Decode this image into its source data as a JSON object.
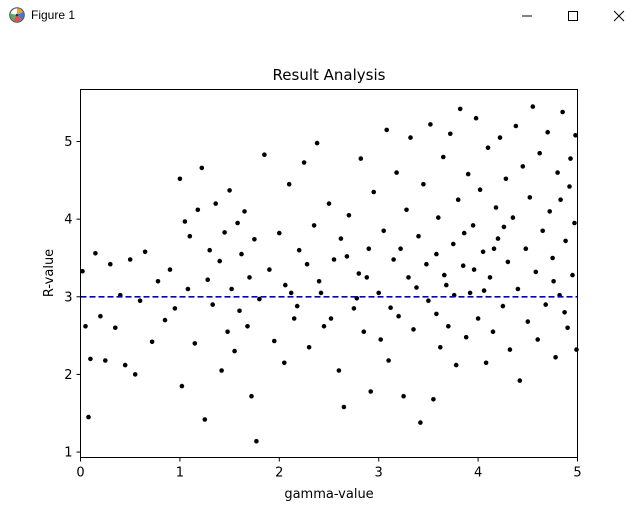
{
  "window": {
    "title": "Figure 1",
    "icon": "matplotlib-logo-icon",
    "buttons": [
      "minimize-icon",
      "maximize-icon",
      "close-icon"
    ]
  },
  "chart_data": {
    "type": "scatter",
    "title": "Result Analysis",
    "xlabel": "gamma-value",
    "ylabel": "R-value",
    "xlim": [
      0,
      5
    ],
    "ylim": [
      0.93,
      5.67
    ],
    "xticks": [
      "0",
      "1",
      "2",
      "3",
      "4",
      "5"
    ],
    "yticks": [
      "1",
      "2",
      "3",
      "4",
      "5"
    ],
    "grid": false,
    "legend": "none",
    "reference_line": {
      "y": 3.0,
      "style": "dashed",
      "color": "#0000cc"
    },
    "marker_color": "#000000",
    "series": [
      {
        "points": [
          [
            0.02,
            3.33
          ],
          [
            0.05,
            2.62
          ],
          [
            0.08,
            1.45
          ],
          [
            0.1,
            2.2
          ],
          [
            0.15,
            3.56
          ],
          [
            0.2,
            2.75
          ],
          [
            0.25,
            2.18
          ],
          [
            0.3,
            3.42
          ],
          [
            0.35,
            2.6
          ],
          [
            0.4,
            3.02
          ],
          [
            0.45,
            2.12
          ],
          [
            0.5,
            3.48
          ],
          [
            0.55,
            2.0
          ],
          [
            0.6,
            2.95
          ],
          [
            0.65,
            3.58
          ],
          [
            0.72,
            2.42
          ],
          [
            0.78,
            3.2
          ],
          [
            0.85,
            2.7
          ],
          [
            0.9,
            3.35
          ],
          [
            0.95,
            2.85
          ],
          [
            1.0,
            4.52
          ],
          [
            1.02,
            1.85
          ],
          [
            1.05,
            3.97
          ],
          [
            1.08,
            3.1
          ],
          [
            1.1,
            3.78
          ],
          [
            1.15,
            2.4
          ],
          [
            1.18,
            4.12
          ],
          [
            1.22,
            4.66
          ],
          [
            1.25,
            1.42
          ],
          [
            1.28,
            3.22
          ],
          [
            1.3,
            3.6
          ],
          [
            1.33,
            2.9
          ],
          [
            1.36,
            4.2
          ],
          [
            1.4,
            3.46
          ],
          [
            1.42,
            2.05
          ],
          [
            1.45,
            3.83
          ],
          [
            1.48,
            2.55
          ],
          [
            1.5,
            4.37
          ],
          [
            1.52,
            3.1
          ],
          [
            1.55,
            2.3
          ],
          [
            1.58,
            3.95
          ],
          [
            1.6,
            2.82
          ],
          [
            1.62,
            3.55
          ],
          [
            1.65,
            4.1
          ],
          [
            1.68,
            2.62
          ],
          [
            1.7,
            3.25
          ],
          [
            1.72,
            1.72
          ],
          [
            1.75,
            3.74
          ],
          [
            1.77,
            1.14
          ],
          [
            1.8,
            2.97
          ],
          [
            1.85,
            4.83
          ],
          [
            1.9,
            3.35
          ],
          [
            1.95,
            2.43
          ],
          [
            2.0,
            3.82
          ],
          [
            2.05,
            2.15
          ],
          [
            2.1,
            4.45
          ],
          [
            2.12,
            3.05
          ],
          [
            2.15,
            2.72
          ],
          [
            2.2,
            3.6
          ],
          [
            2.25,
            4.73
          ],
          [
            2.3,
            2.35
          ],
          [
            2.35,
            3.92
          ],
          [
            2.38,
            4.98
          ],
          [
            2.4,
            3.2
          ],
          [
            2.45,
            2.62
          ],
          [
            2.5,
            4.2
          ],
          [
            2.55,
            3.48
          ],
          [
            2.6,
            2.05
          ],
          [
            2.62,
            3.75
          ],
          [
            2.65,
            1.58
          ],
          [
            2.7,
            4.05
          ],
          [
            2.75,
            2.85
          ],
          [
            2.8,
            3.3
          ],
          [
            2.82,
            4.78
          ],
          [
            2.85,
            2.55
          ],
          [
            2.9,
            3.62
          ],
          [
            2.92,
            1.78
          ],
          [
            2.95,
            4.35
          ],
          [
            3.0,
            3.05
          ],
          [
            3.02,
            2.45
          ],
          [
            3.05,
            3.85
          ],
          [
            3.08,
            5.15
          ],
          [
            3.1,
            2.18
          ],
          [
            3.15,
            3.48
          ],
          [
            3.18,
            4.6
          ],
          [
            3.2,
            2.75
          ],
          [
            3.25,
            1.72
          ],
          [
            3.28,
            4.12
          ],
          [
            3.3,
            3.25
          ],
          [
            3.32,
            5.05
          ],
          [
            3.35,
            2.58
          ],
          [
            3.4,
            3.78
          ],
          [
            3.42,
            1.38
          ],
          [
            3.45,
            4.45
          ],
          [
            3.5,
            2.95
          ],
          [
            3.52,
            5.22
          ],
          [
            3.55,
            1.68
          ],
          [
            3.58,
            3.55
          ],
          [
            3.6,
            4.02
          ],
          [
            3.62,
            2.35
          ],
          [
            3.65,
            4.8
          ],
          [
            3.68,
            3.15
          ],
          [
            3.7,
            2.62
          ],
          [
            3.72,
            5.1
          ],
          [
            3.75,
            3.68
          ],
          [
            3.78,
            2.12
          ],
          [
            3.8,
            4.25
          ],
          [
            3.82,
            5.42
          ],
          [
            3.85,
            3.4
          ],
          [
            3.88,
            2.48
          ],
          [
            3.9,
            4.58
          ],
          [
            3.92,
            3.05
          ],
          [
            3.95,
            3.92
          ],
          [
            3.98,
            5.3
          ],
          [
            4.0,
            2.72
          ],
          [
            4.02,
            4.38
          ],
          [
            4.05,
            3.58
          ],
          [
            4.08,
            2.15
          ],
          [
            4.1,
            4.92
          ],
          [
            4.12,
            3.25
          ],
          [
            4.15,
            2.55
          ],
          [
            4.18,
            4.15
          ],
          [
            4.2,
            3.75
          ],
          [
            4.22,
            5.05
          ],
          [
            4.25,
            2.88
          ],
          [
            4.28,
            4.52
          ],
          [
            4.3,
            3.45
          ],
          [
            4.32,
            2.32
          ],
          [
            4.35,
            4.02
          ],
          [
            4.38,
            5.2
          ],
          [
            4.4,
            3.1
          ],
          [
            4.42,
            1.92
          ],
          [
            4.45,
            4.68
          ],
          [
            4.48,
            3.62
          ],
          [
            4.5,
            2.68
          ],
          [
            4.52,
            4.28
          ],
          [
            4.55,
            5.45
          ],
          [
            4.58,
            3.32
          ],
          [
            4.6,
            2.45
          ],
          [
            4.62,
            4.85
          ],
          [
            4.65,
            3.85
          ],
          [
            4.68,
            2.9
          ],
          [
            4.7,
            5.12
          ],
          [
            4.72,
            4.1
          ],
          [
            4.75,
            3.5
          ],
          [
            4.78,
            2.22
          ],
          [
            4.8,
            4.6
          ],
          [
            4.82,
            3.02
          ],
          [
            4.85,
            5.38
          ],
          [
            4.88,
            3.72
          ],
          [
            4.9,
            2.6
          ],
          [
            4.92,
            4.42
          ],
          [
            4.95,
            3.28
          ],
          [
            4.98,
            5.08
          ],
          [
            4.99,
            2.32
          ],
          [
            4.97,
            3.95
          ],
          [
            4.93,
            4.78
          ],
          [
            4.87,
            2.8
          ],
          [
            4.83,
            4.25
          ],
          [
            4.76,
            3.2
          ],
          [
            2.06,
            3.15
          ],
          [
            2.18,
            2.88
          ],
          [
            2.28,
            3.42
          ],
          [
            2.42,
            3.05
          ],
          [
            2.52,
            2.72
          ],
          [
            2.68,
            3.52
          ],
          [
            2.78,
            2.98
          ],
          [
            2.88,
            3.25
          ],
          [
            3.12,
            2.86
          ],
          [
            3.22,
            3.62
          ],
          [
            3.38,
            3.12
          ],
          [
            3.48,
            3.42
          ],
          [
            3.58,
            2.78
          ],
          [
            3.66,
            3.28
          ],
          [
            3.76,
            3.02
          ],
          [
            3.86,
            3.82
          ],
          [
            3.96,
            3.35
          ],
          [
            4.06,
            3.08
          ],
          [
            4.16,
            3.62
          ],
          [
            4.26,
            3.9
          ]
        ]
      }
    ]
  }
}
